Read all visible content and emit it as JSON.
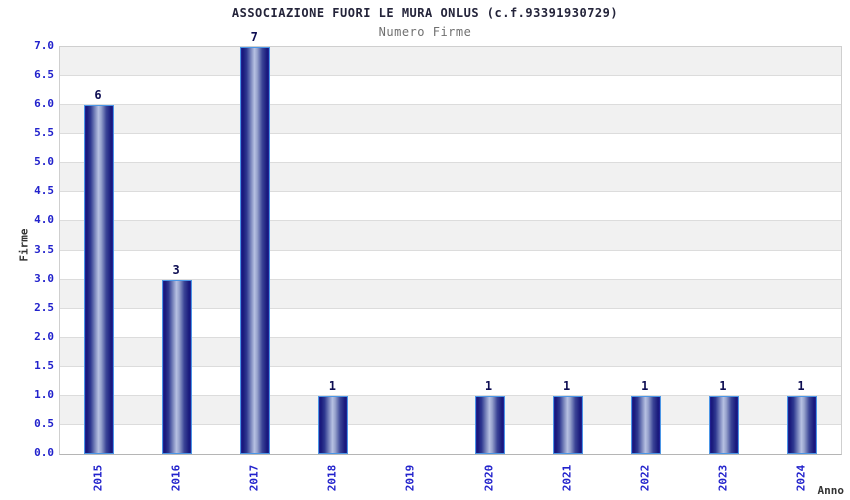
{
  "chart_data": {
    "type": "bar",
    "title": "ASSOCIAZIONE FUORI LE MURA ONLUS (c.f.93391930729)",
    "subtitle": "Numero Firme",
    "categories": [
      "2015",
      "2016",
      "2017",
      "2018",
      "2019",
      "2020",
      "2021",
      "2022",
      "2023",
      "2024"
    ],
    "values": [
      6,
      3,
      7,
      1,
      0,
      1,
      1,
      1,
      1,
      1
    ],
    "bar_value_labels": [
      "6",
      "3",
      "7",
      "1",
      "",
      "1",
      "1",
      "1",
      "1",
      "1"
    ],
    "xlabel": "Anno",
    "ylabel": "Firme",
    "ylim": [
      0,
      7
    ],
    "ytick_step": 0.5,
    "ytick_labels": [
      "0.0",
      "0.5",
      "1.0",
      "1.5",
      "2.0",
      "2.5",
      "3.0",
      "3.5",
      "4.0",
      "4.5",
      "5.0",
      "5.5",
      "6.0",
      "6.5",
      "7.0"
    ],
    "grid": "alternating horizontal bands per 0.5 step, white/gray, gray band at top",
    "legend": "none",
    "colors": {
      "tick_text": "#2222cc",
      "value_text": "#0d0d52",
      "title_text": "#24243a",
      "subtitle_text": "#707070",
      "axis_title_text": "#333333",
      "band_gray": "#f1f1f1",
      "band_white": "#ffffff",
      "grid_line": "#dcdcdc",
      "plot_border": "#cfcfcf",
      "bar_border": "#4b96e6",
      "bar_dark": "#17177a",
      "bar_light": "#b7c1e2"
    }
  }
}
